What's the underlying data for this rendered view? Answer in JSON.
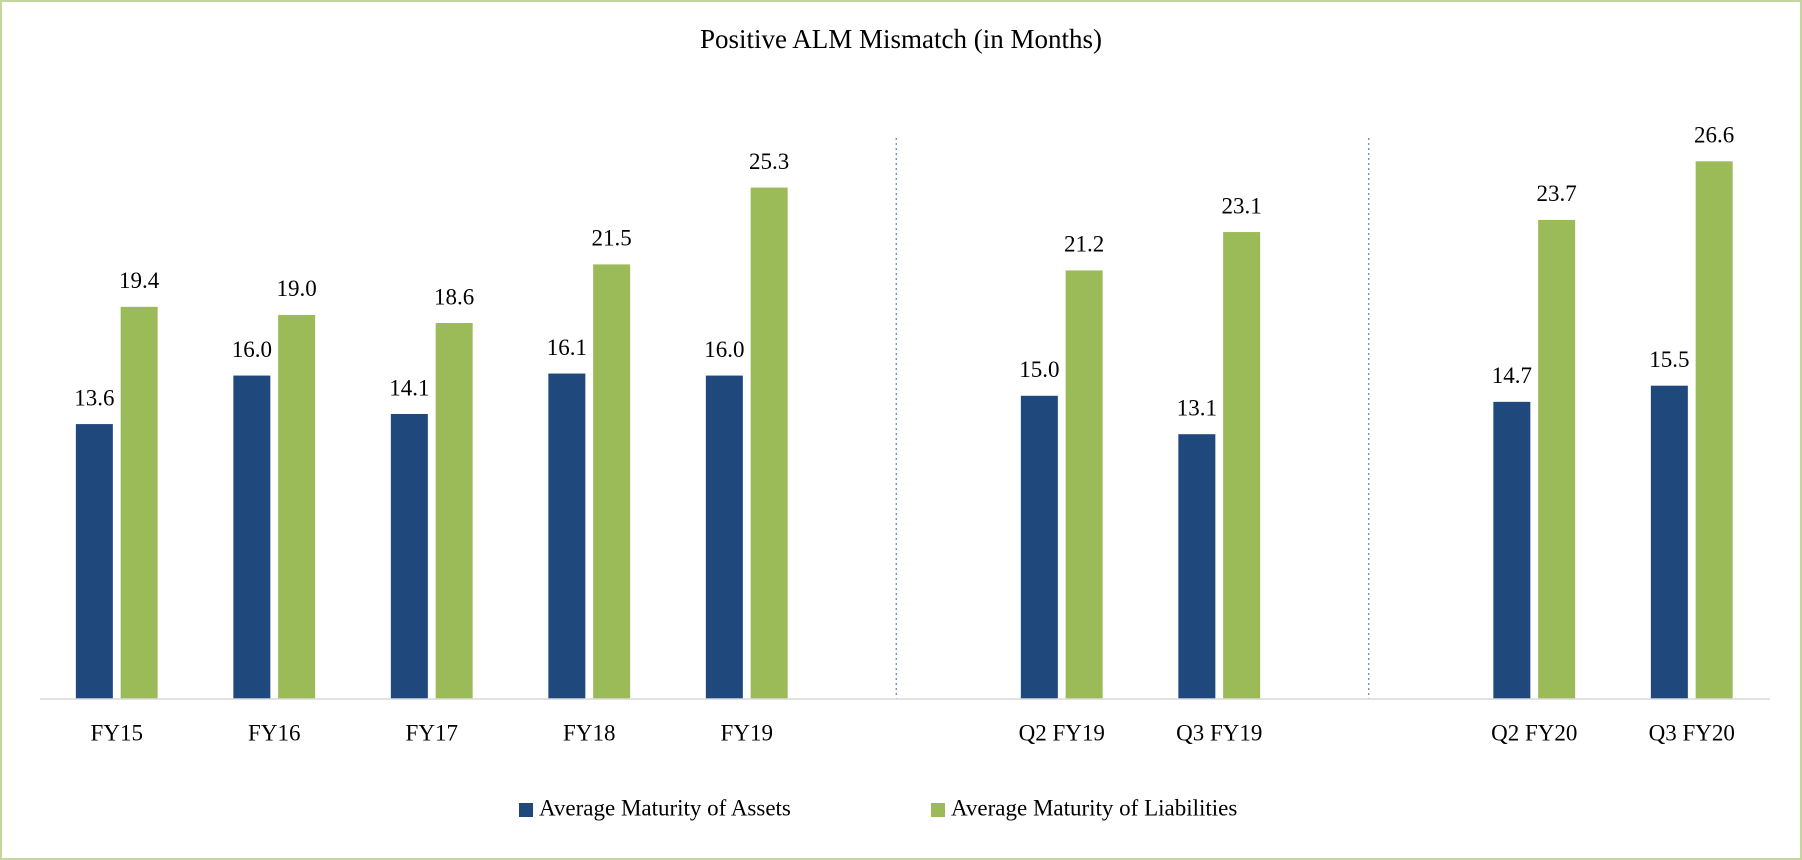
{
  "chart_data": {
    "type": "bar",
    "title": "Positive ALM Mismatch (in Months)",
    "categories": [
      "FY15",
      "FY16",
      "FY17",
      "FY18",
      "FY19",
      null,
      "Q2 FY19",
      "Q3 FY19",
      null,
      "Q2 FY20",
      "Q3 FY20"
    ],
    "series": [
      {
        "name": "Average Maturity of Assets",
        "color": "#1f497d",
        "values": [
          13.6,
          16,
          14.1,
          16.1,
          16,
          null,
          15,
          13.1,
          null,
          14.7,
          15.5
        ],
        "value_labels": [
          "13.6",
          "16.0",
          "14.1",
          "16.1",
          "16.0",
          null,
          "15.0",
          "13.1",
          null,
          "14.7",
          "15.5"
        ]
      },
      {
        "name": "Average Maturity of Liabilities",
        "color": "#9bbb59",
        "values": [
          19.4,
          19,
          18.6,
          21.5,
          25.3,
          null,
          21.2,
          23.1,
          null,
          23.7,
          26.6
        ],
        "value_labels": [
          "19.4",
          "19.0",
          "18.6",
          "21.5",
          "25.3",
          null,
          "21.2",
          "23.1",
          null,
          "23.7",
          "26.6"
        ]
      }
    ],
    "ylim": [
      0,
      28
    ],
    "legend": "bottom"
  }
}
